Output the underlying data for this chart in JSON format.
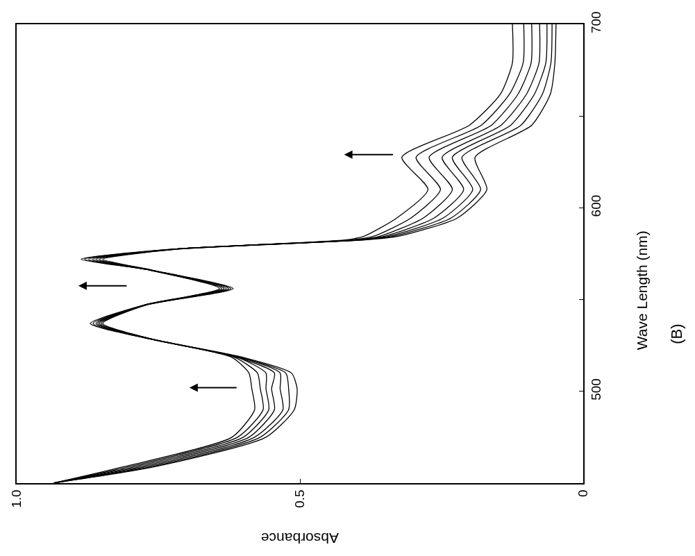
{
  "chart_data": {
    "type": "line",
    "orientation": "horizontal",
    "xlabel": "Absorbance",
    "ylabel": "Wave Length (nm)",
    "annotations": [
      "(B)"
    ],
    "x": [
      450,
      459,
      475,
      490,
      501.5,
      510,
      518.5,
      528.5,
      537,
      547,
      556,
      566,
      572,
      577.5,
      582.5,
      584.5,
      594.5,
      610,
      627.5,
      645,
      662,
      679,
      700
    ],
    "ylim": [
      450,
      700
    ],
    "yticks": [
      {
        "value": 450,
        "label": null
      },
      500,
      {
        "value": 550,
        "label": null
      },
      600,
      {
        "value": 650,
        "label": null
      },
      700
    ],
    "xlim": [
      1.0,
      0
    ],
    "xticks": [
      {
        "value": 1.0,
        "label": "1.0"
      },
      0.5,
      0
    ],
    "marker": "none",
    "line_style": "solid",
    "series": [
      {
        "color": "#000000",
        "values": [
          0.935,
          0.81,
          0.62,
          0.58,
          0.585,
          0.59,
          0.62,
          0.765,
          0.87,
          0.776,
          0.642,
          0.765,
          0.886,
          0.725,
          0.42,
          0.387,
          0.329,
          0.274,
          0.32,
          0.201,
          0.146,
          0.125,
          0.125
        ]
      },
      {
        "color": "#000000",
        "values": [
          0.935,
          0.8,
          0.61,
          0.565,
          0.57,
          0.575,
          0.615,
          0.764,
          0.865,
          0.775,
          0.638,
          0.764,
          0.88,
          0.723,
          0.41,
          0.37,
          0.304,
          0.252,
          0.295,
          0.18,
          0.13,
          0.106,
          0.105
        ]
      },
      {
        "color": "#000000",
        "values": [
          0.935,
          0.79,
          0.6,
          0.555,
          0.56,
          0.56,
          0.61,
          0.763,
          0.86,
          0.775,
          0.634,
          0.763,
          0.873,
          0.721,
          0.4,
          0.359,
          0.282,
          0.231,
          0.272,
          0.162,
          0.115,
          0.092,
          0.091
        ]
      },
      {
        "color": "#000000",
        "values": [
          0.935,
          0.78,
          0.59,
          0.545,
          0.55,
          0.545,
          0.61,
          0.763,
          0.857,
          0.774,
          0.63,
          0.762,
          0.866,
          0.72,
          0.4,
          0.351,
          0.263,
          0.211,
          0.249,
          0.145,
          0.1,
          0.078,
          0.077
        ]
      },
      {
        "color": "#000000",
        "values": [
          0.935,
          0.77,
          0.58,
          0.53,
          0.535,
          0.535,
          0.605,
          0.762,
          0.854,
          0.774,
          0.626,
          0.762,
          0.86,
          0.719,
          0.395,
          0.343,
          0.247,
          0.195,
          0.231,
          0.128,
          0.086,
          0.066,
          0.064
        ]
      },
      {
        "color": "#000000",
        "values": [
          0.935,
          0.76,
          0.57,
          0.52,
          0.52,
          0.525,
          0.605,
          0.762,
          0.851,
          0.773,
          0.622,
          0.761,
          0.854,
          0.717,
          0.39,
          0.335,
          0.233,
          0.181,
          0.214,
          0.11,
          0.072,
          0.057,
          0.055
        ]
      },
      {
        "color": "#000000",
        "values": [
          0.935,
          0.755,
          0.56,
          0.51,
          0.505,
          0.515,
          0.6,
          0.761,
          0.848,
          0.772,
          0.618,
          0.76,
          0.848,
          0.715,
          0.385,
          0.326,
          0.222,
          0.17,
          0.191,
          0.091,
          0.058,
          0.05,
          0.048
        ]
      }
    ]
  }
}
